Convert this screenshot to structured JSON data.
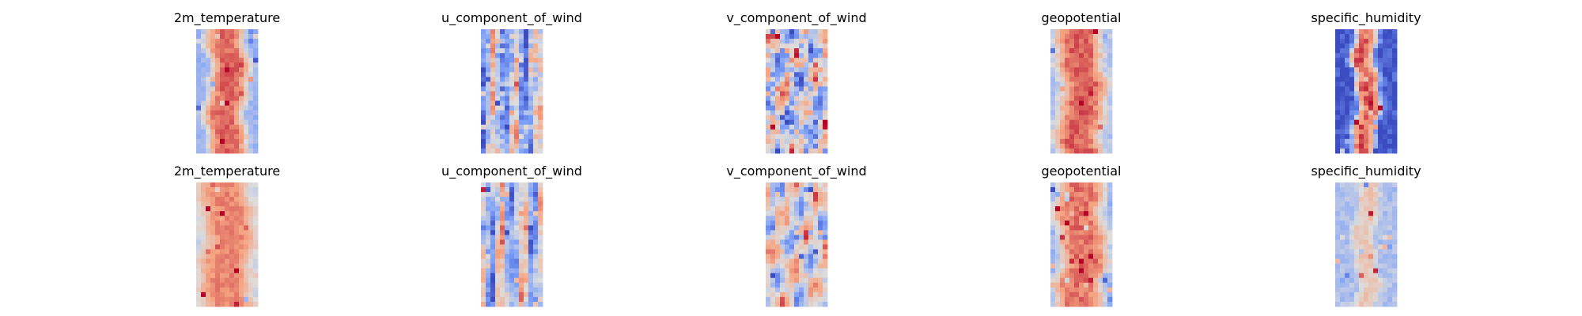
{
  "chart_data": {
    "type": "heatmap",
    "colormap": "coolwarm",
    "layout": {
      "rows": 2,
      "cols": 5
    },
    "axes_visible": false,
    "variables": [
      "2m_temperature",
      "u_component_of_wind",
      "v_component_of_wind",
      "geopotential",
      "specific_humidity"
    ],
    "panels": [
      {
        "row": 1,
        "col": 1,
        "title": "2m_temperature",
        "pattern": "band",
        "base": 0.32,
        "band_level": 0.85,
        "band_width": 0.62,
        "noise": 0.05,
        "speckle": 0.05,
        "seed": 11
      },
      {
        "row": 1,
        "col": 2,
        "title": "u_component_of_wind",
        "pattern": "stripes",
        "base": 0.3,
        "band_level": 0.4,
        "band_width": 0.5,
        "noise": 0.16,
        "speckle": 0.06,
        "seed": 23
      },
      {
        "row": 1,
        "col": 3,
        "title": "v_component_of_wind",
        "pattern": "eddies",
        "base": 0.45,
        "band_level": 0.45,
        "band_width": 0.5,
        "noise": 0.2,
        "speckle": 0.06,
        "seed": 37
      },
      {
        "row": 1,
        "col": 4,
        "title": "geopotential",
        "pattern": "band",
        "base": 0.4,
        "band_level": 0.86,
        "band_width": 0.7,
        "noise": 0.06,
        "speckle": 0.05,
        "seed": 41
      },
      {
        "row": 1,
        "col": 5,
        "title": "specific_humidity",
        "pattern": "narrow_band",
        "base": 0.05,
        "band_level": 0.85,
        "band_width": 0.38,
        "noise": 0.1,
        "speckle": 0.08,
        "seed": 53
      },
      {
        "row": 2,
        "col": 1,
        "title": "2m_temperature",
        "pattern": "band",
        "base": 0.45,
        "band_level": 0.8,
        "band_width": 0.8,
        "noise": 0.04,
        "speckle": 0.03,
        "seed": 67
      },
      {
        "row": 2,
        "col": 2,
        "title": "u_component_of_wind",
        "pattern": "stripes",
        "base": 0.42,
        "band_level": 0.44,
        "band_width": 0.5,
        "noise": 0.1,
        "speckle": 0.1,
        "seed": 71
      },
      {
        "row": 2,
        "col": 3,
        "title": "v_component_of_wind",
        "pattern": "eddies",
        "base": 0.52,
        "band_level": 0.52,
        "band_width": 0.5,
        "noise": 0.08,
        "speckle": 0.08,
        "seed": 83
      },
      {
        "row": 2,
        "col": 4,
        "title": "geopotential",
        "pattern": "band",
        "base": 0.3,
        "band_level": 0.83,
        "band_width": 0.8,
        "noise": 0.06,
        "speckle": 0.06,
        "seed": 97
      },
      {
        "row": 2,
        "col": 5,
        "title": "specific_humidity",
        "pattern": "narrow_band",
        "base": 0.38,
        "band_level": 0.6,
        "band_width": 0.35,
        "noise": 0.06,
        "speckle": 0.05,
        "seed": 101
      }
    ]
  }
}
